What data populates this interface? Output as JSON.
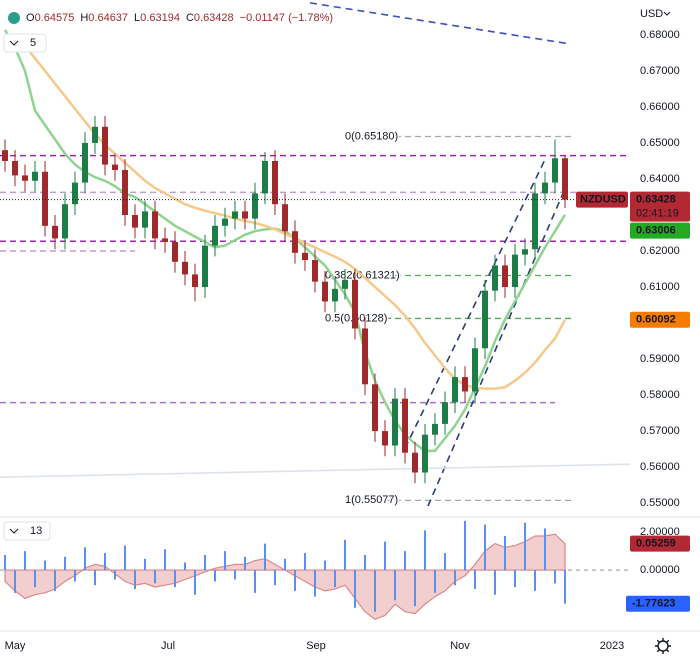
{
  "chart_data": {
    "type": "candlestick",
    "symbol": "NZDUSD",
    "interval": "5",
    "currency": "USD",
    "countdown": "02:41:19",
    "header": [
      {
        "label": "O",
        "value": 0.64575
      },
      {
        "label": "H",
        "value": 0.64637
      },
      {
        "label": "L",
        "value": 0.63194
      },
      {
        "label": "C",
        "value": 0.63428
      }
    ],
    "change_label": "−0.01147 (−1.78%)",
    "up_color": "#1e7d46",
    "down_color": "#9e2a2b",
    "open": [
      0.648,
      0.645,
      0.641,
      0.6395,
      0.642,
      0.627,
      0.6235,
      0.633,
      0.639,
      0.65,
      0.6545,
      0.644,
      0.6425,
      0.63,
      0.6265,
      0.631,
      0.6235,
      0.6225,
      0.617,
      0.6135,
      0.61,
      0.6215,
      0.627,
      0.629,
      0.631,
      0.629,
      0.636,
      0.645,
      0.633,
      0.6255,
      0.6195,
      0.6175,
      0.6115,
      0.606,
      0.6095,
      0.612,
      0.5985,
      0.583,
      0.57,
      0.566,
      0.579,
      0.564,
      0.5585,
      0.569,
      0.572,
      0.578,
      0.585,
      0.581,
      0.593,
      0.609,
      0.616,
      0.61,
      0.619,
      0.6205,
      0.636,
      0.639,
      0.64575
    ],
    "high": [
      0.651,
      0.648,
      0.644,
      0.645,
      0.645,
      0.63,
      0.636,
      0.642,
      0.653,
      0.6575,
      0.6575,
      0.647,
      0.6455,
      0.633,
      0.634,
      0.634,
      0.6265,
      0.6255,
      0.62,
      0.6165,
      0.6245,
      0.63,
      0.632,
      0.634,
      0.634,
      0.639,
      0.6475,
      0.648,
      0.636,
      0.6285,
      0.6225,
      0.6205,
      0.6145,
      0.6125,
      0.615,
      0.615,
      0.6015,
      0.586,
      0.573,
      0.582,
      0.582,
      0.567,
      0.572,
      0.575,
      0.581,
      0.588,
      0.588,
      0.596,
      0.612,
      0.619,
      0.619,
      0.622,
      0.6235,
      0.639,
      0.642,
      0.651,
      0.64637
    ],
    "low": [
      0.642,
      0.638,
      0.6365,
      0.6365,
      0.624,
      0.6205,
      0.6205,
      0.63,
      0.636,
      0.647,
      0.641,
      0.6395,
      0.627,
      0.6235,
      0.6235,
      0.6205,
      0.6195,
      0.614,
      0.6105,
      0.606,
      0.607,
      0.6185,
      0.624,
      0.626,
      0.626,
      0.626,
      0.633,
      0.63,
      0.6225,
      0.6165,
      0.6145,
      0.6085,
      0.603,
      0.603,
      0.6065,
      0.5955,
      0.58,
      0.567,
      0.563,
      0.563,
      0.561,
      0.5555,
      0.5555,
      0.566,
      0.569,
      0.575,
      0.578,
      0.578,
      0.59,
      0.606,
      0.607,
      0.607,
      0.616,
      0.6175,
      0.633,
      0.636,
      0.63194
    ],
    "close": [
      0.645,
      0.641,
      0.6395,
      0.642,
      0.627,
      0.6235,
      0.633,
      0.639,
      0.65,
      0.6545,
      0.644,
      0.6425,
      0.63,
      0.6265,
      0.631,
      0.6235,
      0.6225,
      0.617,
      0.6135,
      0.61,
      0.6215,
      0.627,
      0.629,
      0.631,
      0.629,
      0.636,
      0.645,
      0.633,
      0.6255,
      0.6195,
      0.6175,
      0.6115,
      0.606,
      0.6095,
      0.612,
      0.5985,
      0.583,
      0.57,
      0.566,
      0.579,
      0.564,
      0.5585,
      0.569,
      0.572,
      0.578,
      0.585,
      0.581,
      0.593,
      0.609,
      0.616,
      0.61,
      0.619,
      0.6205,
      0.636,
      0.639,
      0.64575,
      0.63428
    ],
    "moving_averages": [
      {
        "color": "#8fd48f",
        "values": [
          0.6814,
          0.6765,
          0.67,
          0.659,
          0.655,
          0.651,
          0.647,
          0.644,
          0.642,
          0.6405,
          0.6395,
          0.638,
          0.636,
          0.635,
          0.633,
          0.631,
          0.629,
          0.627,
          0.6255,
          0.624,
          0.6225,
          0.621,
          0.6215,
          0.623,
          0.6245,
          0.6255,
          0.626,
          0.6262,
          0.6255,
          0.6235,
          0.621,
          0.6185,
          0.616,
          0.612,
          0.608,
          0.603,
          0.592,
          0.584,
          0.578,
          0.573,
          0.569,
          0.5665,
          0.5645,
          0.5645,
          0.568,
          0.5715,
          0.576,
          0.582,
          0.588,
          0.595,
          0.601,
          0.606,
          0.611,
          0.616,
          0.621,
          0.6255,
          0.63006
        ],
        "tag_color": "#22ab22"
      },
      {
        "color": "#f6c98a",
        "values": [
          null,
          0.68,
          0.677,
          0.6735,
          0.67,
          0.6665,
          0.663,
          0.6595,
          0.656,
          0.6525,
          0.6495,
          0.647,
          0.6445,
          0.642,
          0.6395,
          0.6375,
          0.636,
          0.6345,
          0.633,
          0.632,
          0.6312,
          0.6305,
          0.6298,
          0.629,
          0.6284,
          0.6278,
          0.627,
          0.626,
          0.6248,
          0.6236,
          0.6222,
          0.621,
          0.6197,
          0.6184,
          0.617,
          0.615,
          0.6125,
          0.61,
          0.6075,
          0.605,
          0.602,
          0.5985,
          0.5945,
          0.591,
          0.5875,
          0.5845,
          0.5828,
          0.582,
          0.5818,
          0.5818,
          0.5822,
          0.584,
          0.5862,
          0.589,
          0.5925,
          0.5957,
          0.60092
        ],
        "tag_color": "#f57c00"
      }
    ],
    "levels": [
      {
        "value": 0.6465,
        "color": "#9c27b0",
        "from": -0.5,
        "to": 62.5
      },
      {
        "value": 0.6363,
        "color": "#c39bd3",
        "from": -0.5,
        "to": 62.5
      },
      {
        "value": 0.6227,
        "color": "#9c27b0",
        "from": -0.5,
        "to": 62.5
      },
      {
        "value": 0.62,
        "color": "#c39bd3",
        "from": -0.5,
        "to": 13
      },
      {
        "value": 0.5779,
        "color": "#b06fc4",
        "from": -0.5,
        "to": 55
      }
    ],
    "fib": [
      {
        "value": 0.6518,
        "label": "0(0.65180)",
        "color": "#a8a8a8",
        "from": 34,
        "to": 57
      },
      {
        "value": 0.61321,
        "label": "0.382(0.61321)",
        "color": "#4caf50",
        "from": 32,
        "to": 57
      },
      {
        "value": 0.60128,
        "label": "0.5(0.60128)",
        "color": "#4caf50",
        "from": 32,
        "to": 57
      },
      {
        "value": 0.55077,
        "label": "1(0.55077)",
        "color": "#a8a8a8",
        "from": 34,
        "to": 57
      }
    ],
    "trend_lines": [
      {
        "points": [
          [
            30.5,
            0.6889
          ],
          [
            56.5,
            0.6775
          ]
        ],
        "color": "#3f51b5"
      },
      {
        "points": [
          [
            42.3,
            0.5492
          ],
          [
            56,
            0.6373
          ]
        ],
        "color": "#2a3f7a"
      },
      {
        "points": [
          [
            40,
            0.5652
          ],
          [
            54,
            0.6454
          ]
        ],
        "color": "#2a3f7a"
      },
      {
        "points": [
          [
            -0.5,
            0.5572
          ],
          [
            62.5,
            0.5608
          ]
        ],
        "color": "#dde3ea"
      }
    ],
    "xlim": [
      -0.5,
      62.5
    ],
    "xticks": [
      {
        "value": 1,
        "label": "May"
      },
      {
        "value": 16.3,
        "label": "Jul"
      },
      {
        "value": 31.1,
        "label": "Sep"
      },
      {
        "value": 45.5,
        "label": "Nov"
      },
      {
        "value": 60.7,
        "label": "2023"
      }
    ],
    "ylim": [
      0.5467,
      0.6897
    ],
    "yticks": [
      {
        "value": 0.68,
        "label": "0.68000"
      },
      {
        "value": 0.67,
        "label": "0.67000"
      },
      {
        "value": 0.66,
        "label": "0.66000"
      },
      {
        "value": 0.65,
        "label": "0.65000"
      },
      {
        "value": 0.64,
        "label": "0.64000"
      },
      {
        "value": 0.63,
        "label": "0.63000"
      },
      {
        "value": 0.62,
        "label": "0.62000"
      },
      {
        "value": 0.61,
        "label": "0.61000"
      },
      {
        "value": 0.6,
        "label": "0.60000"
      },
      {
        "value": 0.59,
        "label": "0.59000"
      },
      {
        "value": 0.58,
        "label": "0.58000"
      },
      {
        "value": 0.57,
        "label": "0.57000"
      },
      {
        "value": 0.56,
        "label": "0.56000"
      },
      {
        "value": 0.55,
        "label": "0.55000"
      }
    ],
    "grid": false,
    "indicator": {
      "label": "13",
      "ylim": [
        -2.9,
        2.75
      ],
      "yticks": [
        {
          "value": 2,
          "label": "2.00000"
        },
        {
          "value": 0,
          "label": "0.00000"
        }
      ],
      "histogram_color": "#5b8ff0",
      "area_color": "#e8a5a5",
      "histogram": [
        0.8,
        -1.2,
        1.0,
        -0.9,
        0.5,
        -1.1,
        0.7,
        -0.6,
        1.2,
        -0.8,
        0.9,
        -0.5,
        1.3,
        -1.0,
        0.6,
        -0.7,
        1.1,
        -0.9,
        0.4,
        -1.3,
        0.8,
        -0.6,
        1.0,
        -0.5,
        0.7,
        -1.2,
        1.4,
        -0.8,
        0.6,
        -1.1,
        0.9,
        -1.4,
        0.5,
        -0.9,
        1.6,
        -2.0,
        0.8,
        -2.2,
        1.5,
        -1.6,
        1.0,
        -1.9,
        2.1,
        -1.2,
        0.9,
        -0.8,
        2.6,
        -1.0,
        2.4,
        -1.3,
        1.8,
        -0.9,
        2.5,
        -1.1,
        2.2,
        -0.7,
        -1.77623
      ],
      "area": [
        -0.6,
        -1.1,
        -1.5,
        -1.3,
        -1.2,
        -1.0,
        -0.6,
        -0.3,
        0.1,
        0.3,
        0.2,
        -0.2,
        -0.6,
        -0.8,
        -0.7,
        -0.9,
        -0.8,
        -0.7,
        -0.5,
        -0.3,
        -0.1,
        0.1,
        0.2,
        0.3,
        0.3,
        0.5,
        0.6,
        0.3,
        0.0,
        -0.3,
        -0.6,
        -0.9,
        -1.1,
        -1.0,
        -0.8,
        -1.5,
        -2.2,
        -2.6,
        -2.4,
        -1.8,
        -2.2,
        -2.3,
        -1.8,
        -1.4,
        -1.1,
        -0.6,
        -0.3,
        0.3,
        1.0,
        1.4,
        1.2,
        1.3,
        1.5,
        1.8,
        1.8,
        1.9,
        1.4
      ],
      "oscillator_value": 0.05259
    }
  }
}
